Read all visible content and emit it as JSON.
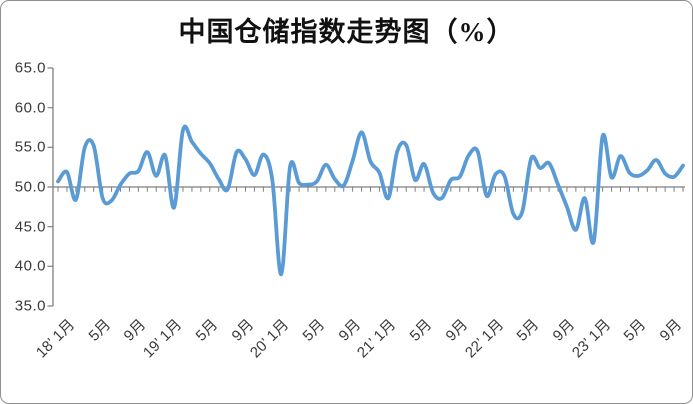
{
  "chart_data": {
    "type": "line",
    "title": "中国仓储指数走势图（%）",
    "unit": "%",
    "legend_position": "none",
    "grid": false,
    "baseline_value": 50,
    "ylim": [
      35,
      65
    ],
    "ytick_step": 5,
    "y_axis": {
      "tick_labels": [
        "65.0",
        "60.0",
        "55.0",
        "50.0",
        "45.0",
        "40.0",
        "35.0"
      ],
      "tick_values": [
        65,
        60,
        55,
        50,
        45,
        40,
        35
      ]
    },
    "x_axis": {
      "tick_labels": [
        {
          "index": 0,
          "label": "18’ 1月"
        },
        {
          "index": 4,
          "label": "5月"
        },
        {
          "index": 8,
          "label": "9月"
        },
        {
          "index": 12,
          "label": "19’ 1月"
        },
        {
          "index": 16,
          "label": "5月"
        },
        {
          "index": 20,
          "label": "9月"
        },
        {
          "index": 24,
          "label": "20’ 1月"
        },
        {
          "index": 28,
          "label": "5月"
        },
        {
          "index": 32,
          "label": "9月"
        },
        {
          "index": 36,
          "label": "21’ 1月"
        },
        {
          "index": 40,
          "label": "5月"
        },
        {
          "index": 44,
          "label": "9月"
        },
        {
          "index": 48,
          "label": "22’ 1月"
        },
        {
          "index": 52,
          "label": "5月"
        },
        {
          "index": 56,
          "label": "9月"
        },
        {
          "index": 60,
          "label": "23’ 1月"
        },
        {
          "index": 64,
          "label": "5月"
        },
        {
          "index": 68,
          "label": "9月"
        }
      ]
    },
    "categories": [
      "2018-01",
      "2018-02",
      "2018-03",
      "2018-04",
      "2018-05",
      "2018-06",
      "2018-07",
      "2018-08",
      "2018-09",
      "2018-10",
      "2018-11",
      "2018-12",
      "2019-01",
      "2019-02",
      "2019-03",
      "2019-04",
      "2019-05",
      "2019-06",
      "2019-07",
      "2019-08",
      "2019-09",
      "2019-10",
      "2019-11",
      "2019-12",
      "2020-01",
      "2020-02",
      "2020-03",
      "2020-04",
      "2020-05",
      "2020-06",
      "2020-07",
      "2020-08",
      "2020-09",
      "2020-10",
      "2020-11",
      "2020-12",
      "2021-01",
      "2021-02",
      "2021-03",
      "2021-04",
      "2021-05",
      "2021-06",
      "2021-07",
      "2021-08",
      "2021-09",
      "2021-10",
      "2021-11",
      "2021-12",
      "2022-01",
      "2022-02",
      "2022-03",
      "2022-04",
      "2022-05",
      "2022-06",
      "2022-07",
      "2022-08",
      "2022-09",
      "2022-10",
      "2022-11",
      "2022-12",
      "2023-01",
      "2023-02",
      "2023-03",
      "2023-04",
      "2023-05",
      "2023-06",
      "2023-07",
      "2023-08",
      "2023-09",
      "2023-10",
      "2023-11"
    ],
    "series": [
      {
        "name": "中国仓储指数",
        "color": "#5B9BD5",
        "values": [
          50.7,
          51.9,
          48.4,
          55.0,
          55.2,
          48.6,
          48.3,
          50.3,
          51.7,
          52.0,
          54.4,
          51.4,
          54.0,
          47.4,
          57.2,
          55.7,
          54.2,
          53.0,
          51.0,
          49.7,
          54.4,
          53.5,
          51.5,
          54.1,
          50.9,
          39.0,
          52.6,
          50.5,
          50.3,
          50.7,
          52.8,
          51.0,
          50.2,
          53.3,
          56.9,
          53.2,
          51.8,
          48.6,
          54.5,
          55.3,
          50.9,
          52.9,
          49.3,
          48.6,
          50.9,
          51.3,
          54.0,
          54.5,
          48.9,
          51.6,
          51.4,
          46.6,
          46.9,
          53.6,
          52.4,
          53.0,
          50.3,
          47.5,
          44.6,
          48.6,
          43.1,
          56.4,
          51.2,
          53.9,
          51.8,
          51.4,
          52.1,
          53.4,
          51.7,
          51.3,
          52.7
        ]
      }
    ],
    "colors": {
      "line": "#5B9BD5",
      "axis": "#7f7f7f",
      "text": "#3a3a3a",
      "title_text": "#111111",
      "background": "#ffffff",
      "frame_border": "#8f8f8f"
    }
  }
}
